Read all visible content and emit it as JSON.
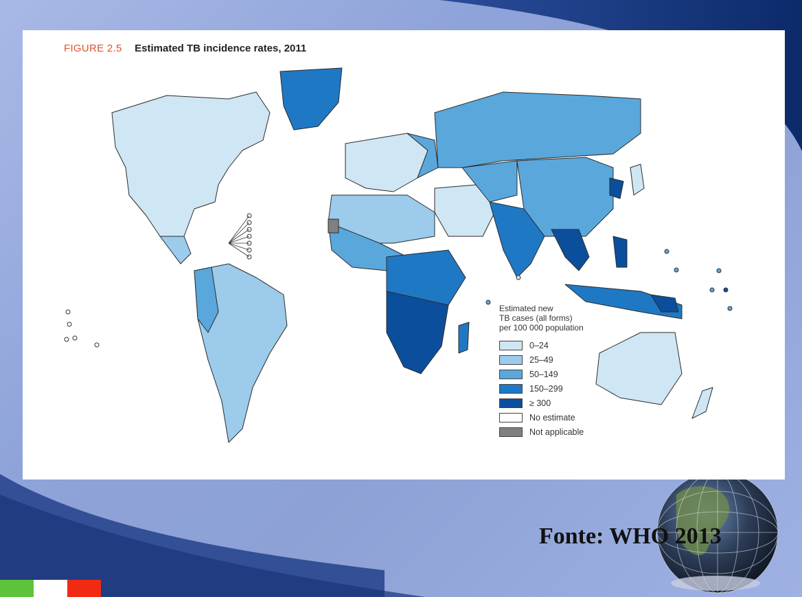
{
  "figure": {
    "number": "FIGURE 2.5",
    "title": "Estimated TB incidence rates, 2011"
  },
  "legend": {
    "title": "Estimated new\nTB cases (all forms)\nper 100 000 population",
    "items": [
      {
        "label": "0–24",
        "color": "#cfe6f4"
      },
      {
        "label": "25–49",
        "color": "#9ccbeb"
      },
      {
        "label": "50–149",
        "color": "#5aa7dc"
      },
      {
        "label": "150–299",
        "color": "#1f78c4"
      },
      {
        "label": "≥ 300",
        "color": "#0b4f9c"
      },
      {
        "label": "No estimate",
        "color": "#ffffff"
      },
      {
        "label": "Not applicable",
        "color": "#808080"
      }
    ]
  },
  "source": "Fonte:  WHO 2013",
  "flag_colors": [
    "#5cc33a",
    "#ffffff",
    "#f12a13"
  ],
  "globe_icon": "globe-icon"
}
